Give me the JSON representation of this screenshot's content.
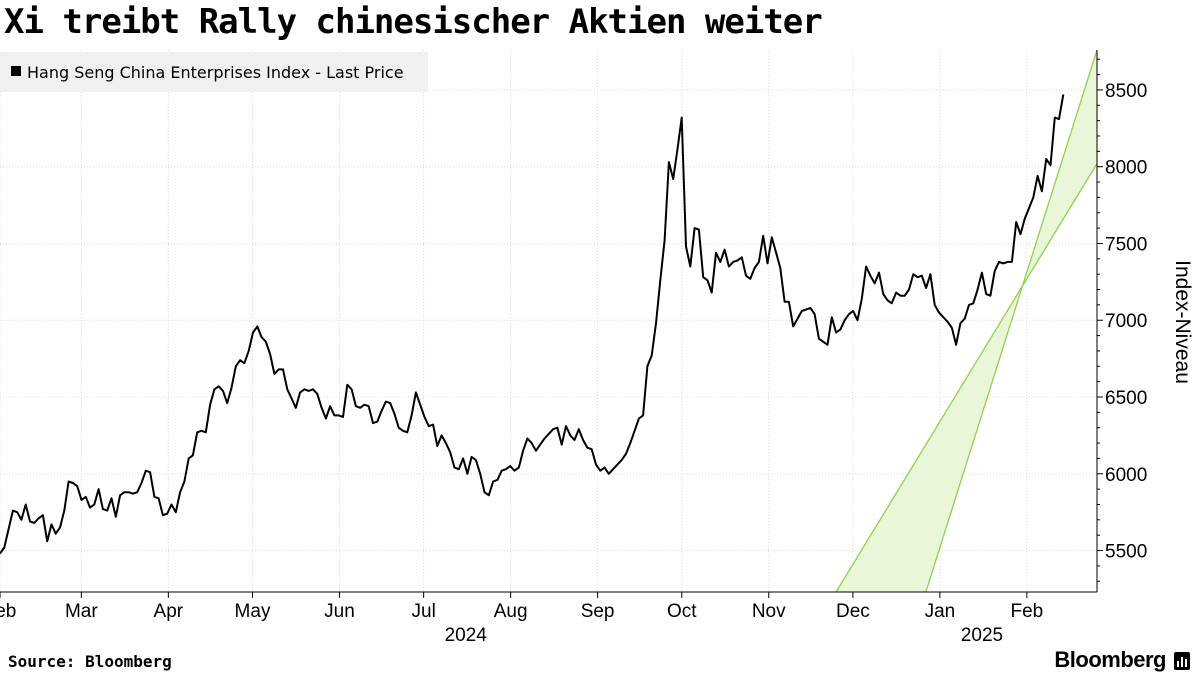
{
  "title": "Xi treibt Rally chinesischer Aktien weiter",
  "source": "Source: Bloomberg",
  "brand": "Bloomberg",
  "colors": {
    "line": "#000000",
    "channel_fill": "#e9f6d8",
    "channel_edge": "#8fd14f",
    "grid": "#d8d8d8",
    "legend_bg": "#f0f0f0"
  },
  "chart_data": {
    "type": "line",
    "series": [
      {
        "name": "Hang Seng China Enterprises Index - Last Price",
        "x_start": "2024-02-01",
        "x_end": "2025-02-14",
        "values": [
          5480,
          5520,
          5640,
          5760,
          5750,
          5700,
          5800,
          5690,
          5680,
          5710,
          5730,
          5560,
          5670,
          5610,
          5650,
          5760,
          5950,
          5940,
          5920,
          5830,
          5850,
          5780,
          5800,
          5900,
          5770,
          5760,
          5840,
          5720,
          5860,
          5880,
          5880,
          5870,
          5880,
          5940,
          6020,
          6010,
          5850,
          5840,
          5730,
          5740,
          5800,
          5750,
          5880,
          5950,
          6100,
          6120,
          6270,
          6280,
          6270,
          6450,
          6550,
          6570,
          6540,
          6460,
          6560,
          6700,
          6740,
          6720,
          6800,
          6920,
          6960,
          6890,
          6860,
          6780,
          6650,
          6680,
          6680,
          6550,
          6490,
          6430,
          6530,
          6550,
          6540,
          6550,
          6520,
          6430,
          6360,
          6440,
          6380,
          6380,
          6370,
          6580,
          6550,
          6440,
          6430,
          6450,
          6440,
          6330,
          6340,
          6410,
          6470,
          6460,
          6390,
          6300,
          6280,
          6270,
          6380,
          6530,
          6450,
          6370,
          6310,
          6320,
          6180,
          6250,
          6200,
          6140,
          6040,
          6030,
          6100,
          6000,
          6110,
          6090,
          6000,
          5880,
          5860,
          5950,
          5960,
          6020,
          6030,
          6050,
          6020,
          6040,
          6150,
          6230,
          6200,
          6150,
          6190,
          6230,
          6260,
          6290,
          6300,
          6190,
          6310,
          6250,
          6220,
          6290,
          6220,
          6170,
          6160,
          6060,
          6020,
          6040,
          6000,
          6030,
          6060,
          6090,
          6130,
          6200,
          6280,
          6360,
          6380,
          6700,
          6770,
          6980,
          7260,
          7520,
          8030,
          7920,
          8110,
          8320,
          7480,
          7350,
          7600,
          7590,
          7280,
          7260,
          7180,
          7440,
          7380,
          7460,
          7350,
          7380,
          7390,
          7410,
          7290,
          7270,
          7340,
          7380,
          7550,
          7370,
          7540,
          7440,
          7340,
          7120,
          7120,
          6960,
          7010,
          7060,
          7070,
          7080,
          7040,
          6880,
          6860,
          6840,
          7020,
          6920,
          6940,
          7000,
          7040,
          7060,
          7000,
          7140,
          7350,
          7290,
          7240,
          7310,
          7170,
          7130,
          7110,
          7180,
          7160,
          7160,
          7200,
          7300,
          7280,
          7290,
          7210,
          7300,
          7100,
          7050,
          7020,
          6990,
          6950,
          6840,
          6980,
          7010,
          7100,
          7110,
          7200,
          7310,
          7170,
          7160,
          7320,
          7380,
          7370,
          7380,
          7380,
          7640,
          7560,
          7660,
          7730,
          7800,
          7940,
          7840,
          8050,
          8010,
          8320,
          8310,
          8470
        ]
      }
    ],
    "x_tick_labels": [
      "Feb",
      "Mar",
      "Apr",
      "May",
      "Jun",
      "Jul",
      "Aug",
      "Sep",
      "Oct",
      "Nov",
      "Dec",
      "Jan",
      "Feb"
    ],
    "x_tick_dates": [
      "2024-02-01",
      "2024-03-01",
      "2024-04-01",
      "2024-05-01",
      "2024-06-01",
      "2024-07-01",
      "2024-08-01",
      "2024-09-01",
      "2024-10-01",
      "2024-11-01",
      "2024-12-01",
      "2025-01-01",
      "2025-02-01"
    ],
    "year_labels": [
      {
        "label": "2024",
        "date": "2024-07-16"
      },
      {
        "label": "2025",
        "date": "2025-01-16"
      }
    ],
    "y_ticks": [
      5500,
      6000,
      6500,
      7000,
      7500,
      8000,
      8500
    ],
    "ylim": [
      5230,
      8760
    ],
    "xlim": [
      "2024-02-01",
      "2025-02-26"
    ],
    "ylabel": "Index-Niveau",
    "y_axis_side": "right",
    "grid": true,
    "legend_position": "top-left",
    "channel": {
      "description": "upward trend channel",
      "lower": [
        {
          "date": "2024-11-25",
          "value": 5230
        },
        {
          "date": "2025-02-26",
          "value": 8020
        }
      ],
      "upper": [
        {
          "date": "2024-12-27",
          "value": 5230
        },
        {
          "date": "2025-02-26",
          "value": 8760
        }
      ]
    }
  }
}
